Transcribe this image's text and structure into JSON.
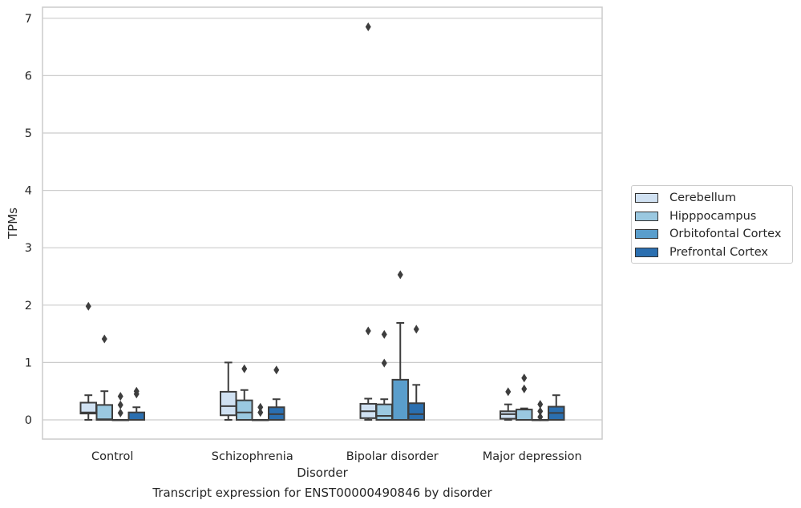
{
  "chart_data": {
    "type": "box",
    "title": "",
    "caption": "Transcript expression for ENST00000490846 by disorder",
    "xlabel": "Disorder",
    "ylabel": "TPMs",
    "ylim": [
      -0.33,
      7.2
    ],
    "yticks": [
      0,
      1,
      2,
      3,
      4,
      5,
      6,
      7
    ],
    "grid": true,
    "legend_position": "right",
    "categories": [
      "Control",
      "Schizophrenia",
      "Bipolar disorder",
      "Major depression"
    ],
    "series": [
      {
        "name": "Cerebellum",
        "color": "#d0e1f2",
        "boxes": [
          {
            "whisker_low": 0.0,
            "q1": 0.11,
            "median": 0.13,
            "q3": 0.3,
            "whisker_high": 0.43,
            "outliers": [
              1.98
            ]
          },
          {
            "whisker_low": 0.0,
            "q1": 0.08,
            "median": 0.24,
            "q3": 0.49,
            "whisker_high": 1.0,
            "outliers": []
          },
          {
            "whisker_low": 0.0,
            "q1": 0.03,
            "median": 0.15,
            "q3": 0.28,
            "whisker_high": 0.37,
            "outliers": [
              1.55,
              6.85
            ]
          },
          {
            "whisker_low": 0.0,
            "q1": 0.02,
            "median": 0.1,
            "q3": 0.15,
            "whisker_high": 0.27,
            "outliers": [
              0.49
            ]
          }
        ]
      },
      {
        "name": "Hipppocampus",
        "color": "#9ac8e0",
        "boxes": [
          {
            "whisker_low": 0.0,
            "q1": 0.0,
            "median": 0.01,
            "q3": 0.26,
            "whisker_high": 0.5,
            "outliers": [
              1.41
            ]
          },
          {
            "whisker_low": 0.0,
            "q1": 0.0,
            "median": 0.13,
            "q3": 0.34,
            "whisker_high": 0.52,
            "outliers": [
              0.89
            ]
          },
          {
            "whisker_low": 0.0,
            "q1": 0.0,
            "median": 0.07,
            "q3": 0.27,
            "whisker_high": 0.36,
            "outliers": [
              0.99,
              1.49
            ]
          },
          {
            "whisker_low": 0.0,
            "q1": 0.0,
            "median": 0.0,
            "q3": 0.18,
            "whisker_high": 0.2,
            "outliers": [
              0.54,
              0.73
            ]
          }
        ]
      },
      {
        "name": "Orbitofontal Cortex",
        "color": "#5a9ecc",
        "boxes": [
          {
            "whisker_low": 0.0,
            "q1": 0.0,
            "median": 0.0,
            "q3": 0.0,
            "whisker_high": 0.0,
            "outliers": [
              0.12,
              0.26,
              0.41
            ]
          },
          {
            "whisker_low": 0.0,
            "q1": 0.0,
            "median": 0.0,
            "q3": 0.0,
            "whisker_high": 0.0,
            "outliers": [
              0.13,
              0.22
            ]
          },
          {
            "whisker_low": 0.0,
            "q1": 0.0,
            "median": 0.0,
            "q3": 0.7,
            "whisker_high": 1.69,
            "outliers": [
              2.53
            ]
          },
          {
            "whisker_low": 0.0,
            "q1": 0.0,
            "median": 0.0,
            "q3": 0.0,
            "whisker_high": 0.0,
            "outliers": [
              0.05,
              0.15,
              0.27
            ]
          }
        ]
      },
      {
        "name": "Prefrontal Cortex",
        "color": "#2b6fb0",
        "boxes": [
          {
            "whisker_low": 0.0,
            "q1": 0.0,
            "median": 0.0,
            "q3": 0.13,
            "whisker_high": 0.22,
            "outliers": [
              0.45,
              0.5
            ]
          },
          {
            "whisker_low": 0.0,
            "q1": 0.0,
            "median": 0.1,
            "q3": 0.22,
            "whisker_high": 0.36,
            "outliers": [
              0.87
            ]
          },
          {
            "whisker_low": 0.0,
            "q1": 0.0,
            "median": 0.1,
            "q3": 0.29,
            "whisker_high": 0.61,
            "outliers": [
              1.58
            ]
          },
          {
            "whisker_low": 0.0,
            "q1": 0.0,
            "median": 0.12,
            "q3": 0.23,
            "whisker_high": 0.43,
            "outliers": []
          }
        ]
      }
    ]
  }
}
